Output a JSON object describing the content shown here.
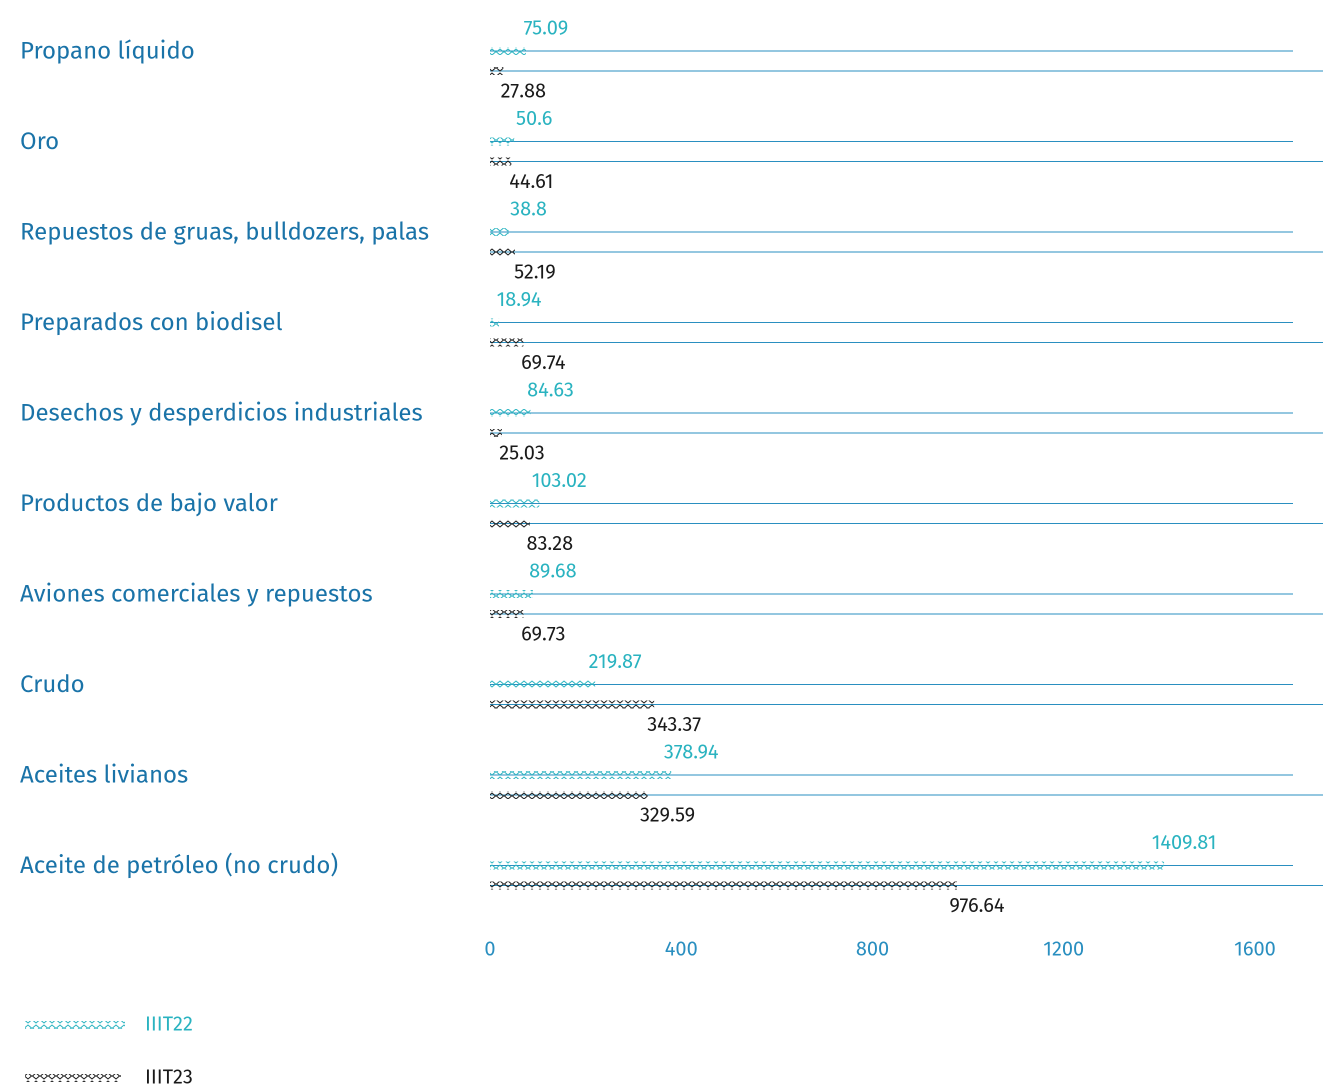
{
  "chart_data": {
    "type": "bar",
    "categories": [
      "Propano líquido",
      "Oro",
      "Repuestos de gruas, bulldozers, palas",
      "Preparados con biodisel",
      "Desechos y desperdicios industriales",
      "Productos de bajo valor",
      "Aviones comerciales y repuestos",
      "Crudo",
      "Aceites livianos",
      "Aceite de petróleo (no crudo)"
    ],
    "series": [
      {
        "name": "IIIT22",
        "color": "#2ab3c0",
        "values": [
          75.09,
          50.6,
          38.8,
          18.94,
          84.63,
          103.02,
          89.68,
          219.87,
          378.94,
          1409.81
        ]
      },
      {
        "name": "IIIT23",
        "color": "#1a1a1a",
        "values": [
          27.88,
          44.61,
          52.19,
          69.74,
          25.03,
          83.28,
          69.73,
          343.37,
          329.59,
          976.64
        ]
      }
    ],
    "xlim": [
      0,
      1600
    ],
    "xticks": [
      0,
      400,
      800,
      1200,
      1600
    ]
  }
}
